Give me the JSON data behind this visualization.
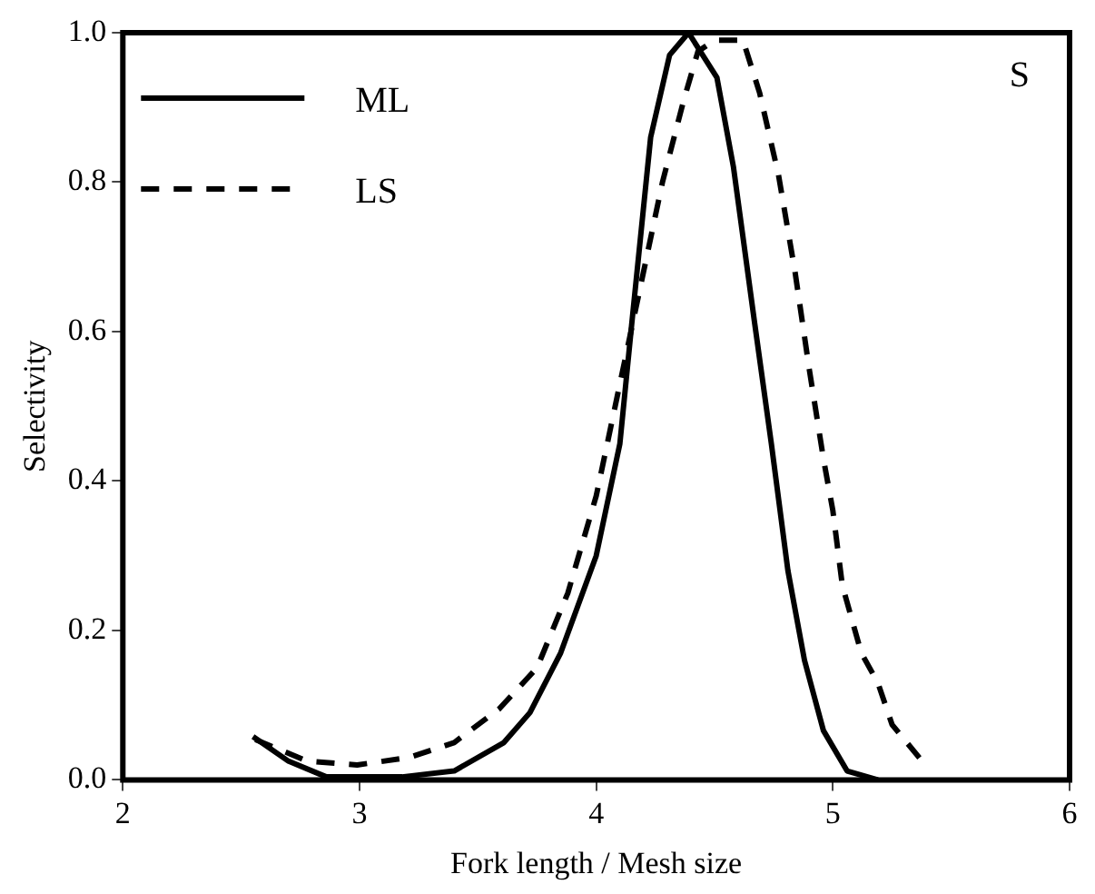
{
  "chart_data": {
    "type": "line",
    "xlabel": "Fork length / Mesh size",
    "ylabel": "Selectivity",
    "annotations": [
      "S"
    ],
    "legend": "top left",
    "grid": false,
    "marker": "none",
    "xlim": [
      2,
      6
    ],
    "xticks": [
      2,
      3,
      4,
      5,
      6
    ],
    "ylim": [
      0,
      1
    ],
    "yticks": [
      {
        "value": 0,
        "label": "0.0"
      },
      0.2,
      0.4,
      0.6,
      0.8,
      {
        "value": 1,
        "label": "1.0"
      }
    ],
    "series": [
      {
        "name": "ML",
        "color": "#000000",
        "line_style": "solid",
        "x": [
          2.55,
          2.7,
          2.86,
          3.18,
          3.4,
          3.61,
          3.72,
          3.85,
          4.0,
          4.1,
          4.15,
          4.23,
          4.31,
          4.39,
          4.51,
          4.58,
          4.67,
          4.74,
          4.81,
          4.88,
          4.96,
          5.06,
          5.19
        ],
        "values": [
          0.058,
          0.025,
          0.004,
          0.004,
          0.012,
          0.05,
          0.09,
          0.17,
          0.3,
          0.45,
          0.61,
          0.86,
          0.97,
          1.0,
          0.94,
          0.82,
          0.61,
          0.45,
          0.28,
          0.16,
          0.066,
          0.012,
          0.0
        ]
      },
      {
        "name": "LS",
        "color": "#000000",
        "line_style": "dashed",
        "x": [
          2.56,
          2.78,
          2.99,
          3.21,
          3.4,
          3.59,
          3.75,
          3.88,
          4.0,
          4.12,
          4.2,
          4.28,
          4.37,
          4.43,
          4.5,
          4.62,
          4.69,
          4.77,
          4.84,
          4.9,
          4.96,
          5.0,
          5.04,
          5.12,
          5.19,
          5.25,
          5.39
        ],
        "values": [
          0.054,
          0.025,
          0.02,
          0.03,
          0.05,
          0.095,
          0.15,
          0.25,
          0.38,
          0.56,
          0.68,
          0.8,
          0.91,
          0.975,
          0.99,
          0.99,
          0.92,
          0.81,
          0.68,
          0.55,
          0.43,
          0.36,
          0.26,
          0.17,
          0.13,
          0.074,
          0.02
        ]
      }
    ]
  }
}
